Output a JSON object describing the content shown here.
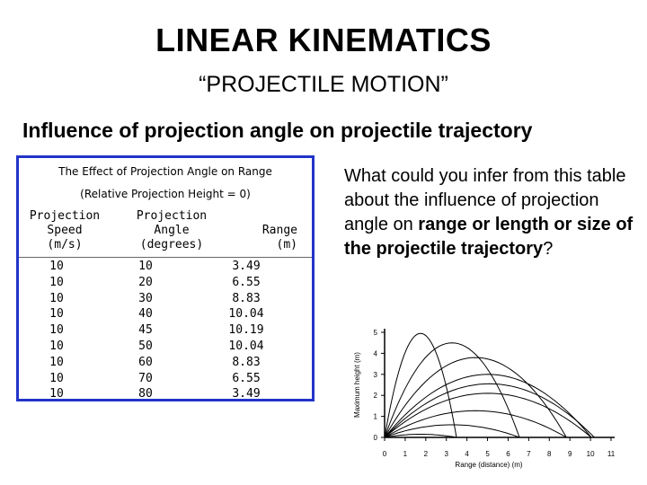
{
  "slide": {
    "title": "LINEAR KINEMATICS",
    "subtitle": "“PROJECTILE MOTION”",
    "heading": "Influence of projection angle on projectile trajectory"
  },
  "table": {
    "caption_line1": "The Effect of Projection Angle on Range",
    "caption_line2": "(Relative Projection Height = 0)",
    "headers": {
      "speed": [
        "Projection",
        "Speed",
        "(m/s)"
      ],
      "angle": [
        "Projection",
        "Angle",
        "(degrees)"
      ],
      "range": [
        "Range",
        "(m)"
      ]
    },
    "rows": [
      {
        "speed": "10",
        "angle": "10",
        "range": "3.49"
      },
      {
        "speed": "10",
        "angle": "20",
        "range": "6.55"
      },
      {
        "speed": "10",
        "angle": "30",
        "range": "8.83"
      },
      {
        "speed": "10",
        "angle": "40",
        "range": "10.04"
      },
      {
        "speed": "10",
        "angle": "45",
        "range": "10.19"
      },
      {
        "speed": "10",
        "angle": "50",
        "range": "10.04"
      },
      {
        "speed": "10",
        "angle": "60",
        "range": "8.83"
      },
      {
        "speed": "10",
        "angle": "70",
        "range": "6.55"
      },
      {
        "speed": "10",
        "angle": "80",
        "range": "3.49"
      }
    ]
  },
  "question": {
    "part1": "What could you infer from this table about the influence of projection angle on ",
    "bold": "range or length or size of the projectile trajectory",
    "part2": "?"
  },
  "chart_data": {
    "type": "line",
    "xlabel": "Range (distance) (m)",
    "ylabel": "Maximum height (m)",
    "xlim": [
      0,
      11
    ],
    "ylim": [
      0,
      5
    ],
    "x_ticks": [
      "0",
      "1",
      "2",
      "3",
      "4",
      "5",
      "6",
      "7",
      "8",
      "9",
      "10",
      "11"
    ],
    "y_ticks": [
      "0",
      "1",
      "2",
      "3",
      "4",
      "5"
    ],
    "series": [
      {
        "angle": 10,
        "range": 3.49,
        "max_height": 0.15
      },
      {
        "angle": 20,
        "range": 6.55,
        "max_height": 0.6
      },
      {
        "angle": 30,
        "range": 8.83,
        "max_height": 1.27
      },
      {
        "angle": 40,
        "range": 10.04,
        "max_height": 2.1
      },
      {
        "angle": 45,
        "range": 10.19,
        "max_height": 2.55
      },
      {
        "angle": 50,
        "range": 10.04,
        "max_height": 3.0
      },
      {
        "angle": 60,
        "range": 8.83,
        "max_height": 3.8
      },
      {
        "angle": 70,
        "range": 6.55,
        "max_height": 4.5
      },
      {
        "angle": 80,
        "range": 3.49,
        "max_height": 4.95
      }
    ]
  }
}
